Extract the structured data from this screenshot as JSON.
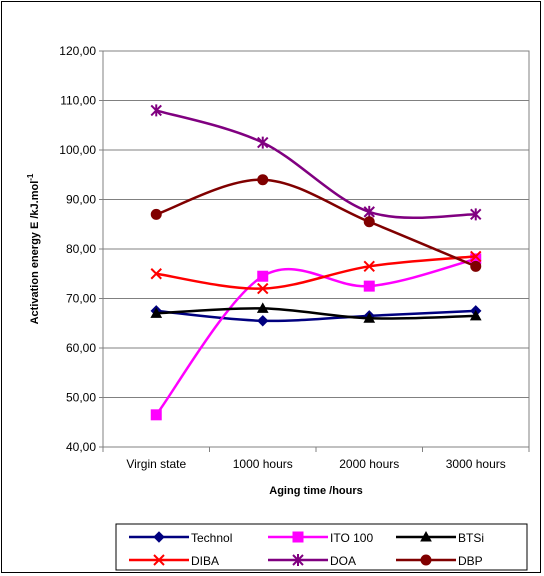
{
  "chart_data": {
    "type": "line",
    "categories": [
      "Virgin state",
      "1000 hours",
      "2000 hours",
      "3000 hours"
    ],
    "xlabel": "Aging time  /hours",
    "ylabel": "Activation energy  E /kJ.mol",
    "ylabel_sup": "-1",
    "ylim": [
      40,
      120
    ],
    "ytick_step": 10,
    "ytick_labels": [
      "40,00",
      "50,00",
      "60,00",
      "70,00",
      "80,00",
      "90,00",
      "100,00",
      "110,00",
      "120,00"
    ],
    "grid": "horizontal",
    "legend_position": "bottom",
    "series": [
      {
        "name": "Technol",
        "color": "#00007f",
        "marker": "diamond",
        "values": [
          67.5,
          65.5,
          66.5,
          67.5
        ]
      },
      {
        "name": "ITO 100",
        "color": "#ff00ff",
        "marker": "square",
        "values": [
          46.5,
          74.5,
          72.5,
          78.0
        ]
      },
      {
        "name": "BTSi",
        "color": "#000000",
        "marker": "triangle",
        "values": [
          67.0,
          68.0,
          66.0,
          66.5
        ]
      },
      {
        "name": "DIBA",
        "color": "#ff0000",
        "marker": "x",
        "values": [
          75.0,
          72.0,
          76.5,
          78.5
        ]
      },
      {
        "name": "DOA",
        "color": "#800080",
        "marker": "star",
        "values": [
          108.0,
          101.5,
          87.5,
          87.0
        ]
      },
      {
        "name": "DBP",
        "color": "#800000",
        "marker": "circle",
        "values": [
          87.0,
          94.0,
          85.5,
          76.5
        ]
      }
    ]
  }
}
